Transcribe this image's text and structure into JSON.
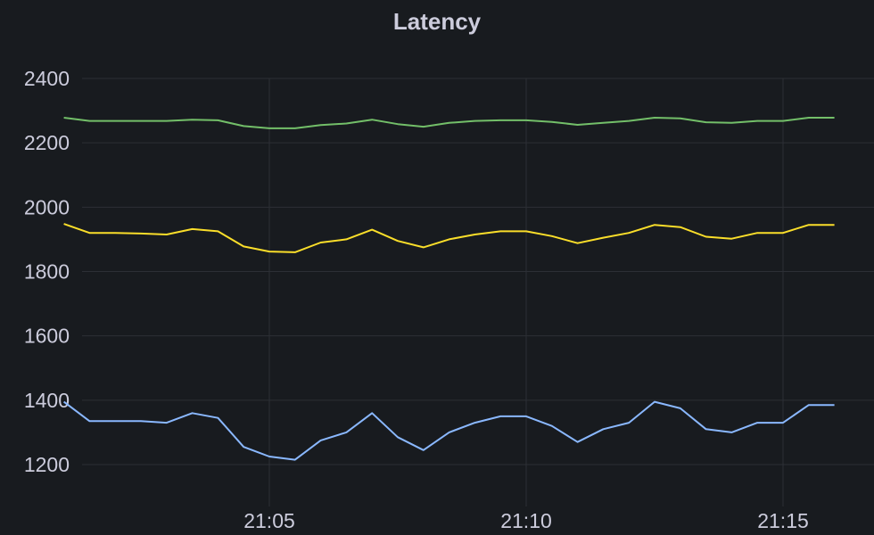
{
  "panel": {
    "title": "Latency"
  },
  "chart_data": {
    "type": "line",
    "title": "Latency",
    "xlabel": "",
    "ylabel": "",
    "x": [
      "21:01:00",
      "21:01:30",
      "21:02:00",
      "21:02:30",
      "21:03:00",
      "21:03:30",
      "21:04:00",
      "21:04:30",
      "21:05:00",
      "21:05:30",
      "21:06:00",
      "21:06:30",
      "21:07:00",
      "21:07:30",
      "21:08:00",
      "21:08:30",
      "21:09:00",
      "21:09:30",
      "21:10:00",
      "21:10:30",
      "21:11:00",
      "21:11:30",
      "21:12:00",
      "21:12:30",
      "21:13:00",
      "21:13:30",
      "21:14:00",
      "21:14:30",
      "21:15:00",
      "21:15:30",
      "21:16:00"
    ],
    "x_range": [
      "21:01:00",
      "21:16:10"
    ],
    "x_ticks": [
      "21:05",
      "21:10",
      "21:15"
    ],
    "y_ticks": [
      2400,
      2200,
      2000,
      1800,
      1600,
      1400,
      1200
    ],
    "ylim": [
      1150,
      2400
    ],
    "grid": true,
    "legend": "none",
    "series": [
      {
        "color": "#73bf69",
        "values": [
          2278,
          2268,
          2268,
          2268,
          2268,
          2272,
          2270,
          2252,
          2245,
          2245,
          2255,
          2260,
          2272,
          2258,
          2250,
          2262,
          2268,
          2270,
          2270,
          2265,
          2256,
          2262,
          2268,
          2278,
          2276,
          2264,
          2262,
          2268,
          2268,
          2278,
          2278
        ]
      },
      {
        "color": "#fade2a",
        "values": [
          1948,
          1920,
          1920,
          1918,
          1915,
          1932,
          1925,
          1878,
          1862,
          1860,
          1890,
          1900,
          1930,
          1895,
          1875,
          1900,
          1915,
          1925,
          1925,
          1910,
          1888,
          1905,
          1920,
          1945,
          1938,
          1908,
          1902,
          1920,
          1920,
          1945,
          1945
        ]
      },
      {
        "color": "#8ab8ff",
        "values": [
          1395,
          1335,
          1335,
          1335,
          1330,
          1360,
          1345,
          1255,
          1225,
          1215,
          1275,
          1300,
          1360,
          1285,
          1245,
          1300,
          1330,
          1350,
          1350,
          1320,
          1270,
          1310,
          1330,
          1395,
          1375,
          1310,
          1300,
          1330,
          1330,
          1385,
          1385
        ]
      }
    ]
  }
}
